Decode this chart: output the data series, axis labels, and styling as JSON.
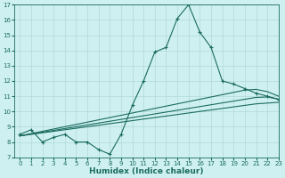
{
  "xlabel": "Humidex (Indice chaleur)",
  "bg_color": "#cff0f0",
  "grid_color": "#b0d8d8",
  "line_color": "#1a6b60",
  "x": [
    0,
    1,
    2,
    3,
    4,
    5,
    6,
    7,
    8,
    9,
    10,
    11,
    12,
    13,
    14,
    15,
    16,
    17,
    18,
    19,
    20,
    21,
    22,
    23
  ],
  "y_main": [
    8.5,
    8.8,
    8.0,
    8.3,
    8.5,
    8.0,
    8.0,
    7.5,
    7.2,
    8.5,
    10.4,
    12.0,
    13.9,
    14.2,
    16.1,
    17.0,
    15.2,
    14.2,
    12.0,
    11.8,
    11.5,
    11.2,
    11.0,
    10.8
  ],
  "y_reg1": [
    8.4,
    8.55,
    8.7,
    8.85,
    9.0,
    9.15,
    9.3,
    9.45,
    9.6,
    9.75,
    9.9,
    10.05,
    10.2,
    10.35,
    10.5,
    10.65,
    10.8,
    10.95,
    11.1,
    11.25,
    11.4,
    11.45,
    11.3,
    11.0
  ],
  "y_reg2": [
    8.4,
    8.52,
    8.64,
    8.76,
    8.88,
    9.0,
    9.12,
    9.24,
    9.36,
    9.48,
    9.6,
    9.72,
    9.84,
    9.96,
    10.08,
    10.2,
    10.32,
    10.44,
    10.56,
    10.68,
    10.8,
    10.92,
    10.95,
    10.8
  ],
  "y_reg3": [
    8.4,
    8.5,
    8.6,
    8.7,
    8.8,
    8.9,
    9.0,
    9.1,
    9.2,
    9.3,
    9.4,
    9.5,
    9.6,
    9.7,
    9.8,
    9.9,
    10.0,
    10.1,
    10.2,
    10.3,
    10.4,
    10.5,
    10.55,
    10.6
  ],
  "ylim": [
    7,
    17
  ],
  "xlim": [
    -0.5,
    23
  ],
  "yticks": [
    7,
    8,
    9,
    10,
    11,
    12,
    13,
    14,
    15,
    16,
    17
  ],
  "xticks": [
    0,
    1,
    2,
    3,
    4,
    5,
    6,
    7,
    8,
    9,
    10,
    11,
    12,
    13,
    14,
    15,
    16,
    17,
    18,
    19,
    20,
    21,
    22,
    23
  ],
  "tick_fontsize": 5.0,
  "xlabel_fontsize": 6.5
}
